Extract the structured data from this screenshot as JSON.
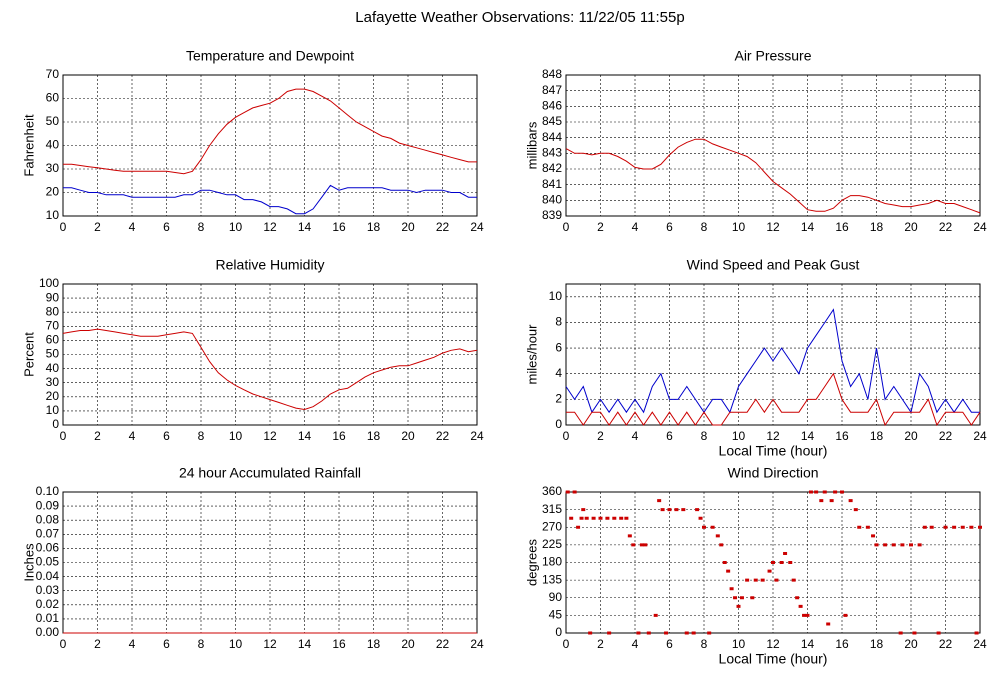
{
  "title": "Lafayette Weather Observations: 11/22/05 11:55p",
  "chart_data": [
    {
      "type": "line",
      "title": "Temperature and Dewpoint",
      "ylabel": "Fahrenheit",
      "x": [
        0,
        0.5,
        1,
        1.5,
        2,
        2.5,
        3,
        3.5,
        4,
        4.5,
        5,
        5.5,
        6,
        6.5,
        7,
        7.5,
        8,
        8.5,
        9,
        9.5,
        10,
        10.5,
        11,
        11.5,
        12,
        12.5,
        13,
        13.5,
        14,
        14.5,
        15,
        15.5,
        16,
        16.5,
        17,
        17.5,
        18,
        18.5,
        19,
        19.5,
        20,
        20.5,
        21,
        21.5,
        22,
        22.5,
        23,
        23.5,
        24
      ],
      "series": [
        {
          "color": "#cc0000",
          "values": [
            32,
            32,
            31.5,
            31,
            30.5,
            30,
            29.5,
            29,
            29,
            29,
            29,
            29,
            29,
            28.5,
            28,
            29,
            34,
            40,
            45,
            49,
            52,
            54,
            56,
            57,
            58,
            60,
            63,
            64,
            64,
            63,
            61,
            59,
            56,
            53,
            50,
            48,
            46,
            44,
            43,
            41,
            40,
            39,
            38,
            37,
            36,
            35,
            34,
            33,
            33
          ]
        },
        {
          "color": "#0000cc",
          "values": [
            22,
            22,
            21,
            20,
            20,
            19,
            19,
            19,
            18,
            18,
            18,
            18,
            18,
            18,
            19,
            19,
            21,
            21,
            20,
            19,
            19,
            17,
            17,
            16,
            14,
            14,
            13,
            11,
            11,
            13,
            18,
            23,
            21,
            22,
            22,
            22,
            22,
            22,
            21,
            21,
            21,
            20,
            21,
            21,
            21,
            20,
            20,
            18,
            18
          ]
        }
      ],
      "xlim": [
        0,
        24
      ],
      "xticks": [
        0,
        2,
        4,
        6,
        8,
        10,
        12,
        14,
        16,
        18,
        20,
        22,
        24
      ],
      "ylim": [
        10,
        70
      ],
      "yticks": [
        10,
        20,
        30,
        40,
        50,
        60,
        70
      ],
      "grid": true
    },
    {
      "type": "line",
      "title": "Air Pressure",
      "ylabel": "millibars",
      "x": [
        0,
        0.5,
        1,
        1.5,
        2,
        2.5,
        3,
        3.5,
        4,
        4.5,
        5,
        5.5,
        6,
        6.5,
        7,
        7.5,
        8,
        8.5,
        9,
        9.5,
        10,
        10.5,
        11,
        11.5,
        12,
        12.5,
        13,
        13.5,
        14,
        14.5,
        15,
        15.5,
        16,
        16.5,
        17,
        17.5,
        18,
        18.5,
        19,
        19.5,
        20,
        20.5,
        21,
        21.5,
        22,
        22.5,
        23,
        23.5,
        24
      ],
      "series": [
        {
          "color": "#cc0000",
          "values": [
            843.3,
            843,
            843,
            842.9,
            843,
            843,
            842.8,
            842.5,
            842.1,
            842,
            842,
            842.3,
            842.9,
            843.4,
            843.7,
            843.9,
            843.9,
            843.6,
            843.4,
            843.2,
            843,
            842.8,
            842.4,
            841.8,
            841.2,
            840.8,
            840.4,
            839.9,
            839.4,
            839.3,
            839.3,
            839.5,
            840,
            840.3,
            840.3,
            840.2,
            840,
            839.8,
            839.7,
            839.6,
            839.6,
            839.7,
            839.8,
            840,
            839.8,
            839.8,
            839.6,
            839.4,
            839.2
          ]
        }
      ],
      "xlim": [
        0,
        24
      ],
      "xticks": [
        0,
        2,
        4,
        6,
        8,
        10,
        12,
        14,
        16,
        18,
        20,
        22,
        24
      ],
      "ylim": [
        839,
        848
      ],
      "yticks": [
        839,
        840,
        841,
        842,
        843,
        844,
        845,
        846,
        847,
        848
      ],
      "grid": true
    },
    {
      "type": "line",
      "title": "Relative Humidity",
      "ylabel": "Percent",
      "x": [
        0,
        0.5,
        1,
        1.5,
        2,
        2.5,
        3,
        3.5,
        4,
        4.5,
        5,
        5.5,
        6,
        6.5,
        7,
        7.5,
        8,
        8.5,
        9,
        9.5,
        10,
        10.5,
        11,
        11.5,
        12,
        12.5,
        13,
        13.5,
        14,
        14.5,
        15,
        15.5,
        16,
        16.5,
        17,
        17.5,
        18,
        18.5,
        19,
        19.5,
        20,
        20.5,
        21,
        21.5,
        22,
        22.5,
        23,
        23.5,
        24
      ],
      "series": [
        {
          "color": "#cc0000",
          "values": [
            65,
            66,
            67,
            67,
            68,
            67,
            66,
            65,
            64,
            63,
            63,
            63,
            64,
            65,
            66,
            65,
            55,
            45,
            37,
            32,
            28,
            25,
            22,
            20,
            18,
            16,
            14,
            12,
            11,
            13,
            17,
            22,
            25,
            26,
            30,
            34,
            37,
            39,
            41,
            42,
            42,
            44,
            46,
            48,
            51,
            53,
            54,
            52,
            53
          ]
        }
      ],
      "xlim": [
        0,
        24
      ],
      "xticks": [
        0,
        2,
        4,
        6,
        8,
        10,
        12,
        14,
        16,
        18,
        20,
        22,
        24
      ],
      "ylim": [
        0,
        100
      ],
      "yticks": [
        0,
        10,
        20,
        30,
        40,
        50,
        60,
        70,
        80,
        90,
        100
      ],
      "grid": true
    },
    {
      "type": "line",
      "title": "Wind Speed and Peak Gust",
      "ylabel": "miles/hour",
      "xlabel": "Local Time (hour)",
      "x": [
        0,
        0.5,
        1,
        1.5,
        2,
        2.5,
        3,
        3.5,
        4,
        4.5,
        5,
        5.5,
        6,
        6.5,
        7,
        7.5,
        8,
        8.5,
        9,
        9.5,
        10,
        10.5,
        11,
        11.5,
        12,
        12.5,
        13,
        13.5,
        14,
        14.5,
        15,
        15.5,
        16,
        16.5,
        17,
        17.5,
        18,
        18.5,
        19,
        19.5,
        20,
        20.5,
        21,
        21.5,
        22,
        22.5,
        23,
        23.5,
        24
      ],
      "series": [
        {
          "color": "#0000cc",
          "values": [
            3,
            2,
            3,
            1,
            2,
            1,
            2,
            1,
            2,
            1,
            3,
            4,
            2,
            2,
            3,
            2,
            1,
            2,
            2,
            1,
            3,
            4,
            5,
            6,
            5,
            6,
            5,
            4,
            6,
            7,
            8,
            9,
            5,
            3,
            4,
            2,
            6,
            2,
            3,
            2,
            1,
            4,
            3,
            1,
            2,
            1,
            2,
            1,
            1
          ]
        },
        {
          "color": "#cc0000",
          "values": [
            1,
            1,
            0,
            1,
            1,
            0,
            1,
            0,
            1,
            0,
            1,
            0,
            1,
            0,
            1,
            0,
            1,
            0,
            0,
            1,
            1,
            1,
            2,
            1,
            2,
            1,
            1,
            1,
            2,
            2,
            3,
            4,
            2,
            1,
            1,
            1,
            2,
            0,
            1,
            1,
            1,
            1,
            2,
            0,
            1,
            1,
            1,
            0,
            1
          ]
        }
      ],
      "xlim": [
        0,
        24
      ],
      "xticks": [
        0,
        2,
        4,
        6,
        8,
        10,
        12,
        14,
        16,
        18,
        20,
        22,
        24
      ],
      "ylim": [
        0,
        11
      ],
      "yticks": [
        0,
        2,
        4,
        6,
        8,
        10
      ],
      "grid": true
    },
    {
      "type": "line",
      "title": "24 hour Accumulated Rainfall",
      "ylabel": "Inches",
      "x": [
        0,
        24
      ],
      "series": [
        {
          "color": "#cc0000",
          "values": [
            0,
            0
          ]
        }
      ],
      "xlim": [
        0,
        24
      ],
      "xticks": [
        0,
        2,
        4,
        6,
        8,
        10,
        12,
        14,
        16,
        18,
        20,
        22,
        24
      ],
      "ylim": [
        0,
        0.1
      ],
      "yticks": [
        {
          "value": 0,
          "label": "0.00"
        },
        {
          "value": 0.01,
          "label": "0.01"
        },
        {
          "value": 0.02,
          "label": "0.02"
        },
        {
          "value": 0.03,
          "label": "0.03"
        },
        {
          "value": 0.04,
          "label": "0.04"
        },
        {
          "value": 0.05,
          "label": "0.05"
        },
        {
          "value": 0.06,
          "label": "0.06"
        },
        {
          "value": 0.07,
          "label": "0.07"
        },
        {
          "value": 0.08,
          "label": "0.08"
        },
        {
          "value": 0.09,
          "label": "0.09"
        },
        {
          "value": 0.1,
          "label": "0.10"
        }
      ],
      "grid": true
    },
    {
      "type": "scatter",
      "title": "Wind Direction",
      "ylabel": "degrees",
      "xlabel": "Local Time (hour)",
      "color": "#cc0000",
      "x": [
        0.1,
        0.3,
        0.5,
        0.7,
        0.9,
        1,
        1.2,
        1.4,
        1.6,
        2,
        2.4,
        2.5,
        2.8,
        3.2,
        3.5,
        3.7,
        3.9,
        4.2,
        4.4,
        4.6,
        4.8,
        5.2,
        5.4,
        5.6,
        5.8,
        6,
        6.4,
        6.8,
        7,
        7.4,
        7.6,
        7.8,
        8,
        8.3,
        8.5,
        8.8,
        9,
        9.2,
        9.4,
        9.6,
        9.8,
        10,
        10.2,
        10.5,
        10.8,
        11,
        11.4,
        11.8,
        12,
        12.2,
        12.5,
        12.7,
        13,
        13.2,
        13.4,
        13.6,
        13.8,
        14,
        14.2,
        14.5,
        14.8,
        15,
        15.2,
        15.4,
        15.6,
        16,
        16.2,
        16.5,
        16.8,
        17,
        17.5,
        17.8,
        18,
        18.5,
        19,
        19.4,
        19.5,
        20,
        20.2,
        20.5,
        20.8,
        21.2,
        21.6,
        22,
        22.5,
        23,
        23.5,
        23.8,
        24
      ],
      "values": [
        360,
        293,
        360,
        270,
        293,
        315,
        293,
        0,
        293,
        293,
        293,
        0,
        293,
        293,
        293,
        248,
        225,
        0,
        225,
        225,
        0,
        45,
        338,
        315,
        0,
        315,
        315,
        315,
        0,
        0,
        315,
        293,
        270,
        0,
        270,
        248,
        225,
        180,
        158,
        113,
        90,
        68,
        90,
        135,
        90,
        135,
        135,
        158,
        180,
        135,
        180,
        203,
        180,
        135,
        90,
        68,
        45,
        45,
        360,
        360,
        338,
        360,
        23,
        338,
        360,
        360,
        45,
        338,
        315,
        270,
        270,
        248,
        225,
        225,
        225,
        0,
        225,
        225,
        0,
        225,
        270,
        270,
        0,
        270,
        270,
        270,
        270,
        0,
        270
      ],
      "xlim": [
        0,
        24
      ],
      "xticks": [
        0,
        2,
        4,
        6,
        8,
        10,
        12,
        14,
        16,
        18,
        20,
        22,
        24
      ],
      "ylim": [
        0,
        360
      ],
      "yticks": [
        0,
        45,
        90,
        135,
        180,
        225,
        270,
        315,
        360
      ],
      "grid": true
    }
  ]
}
